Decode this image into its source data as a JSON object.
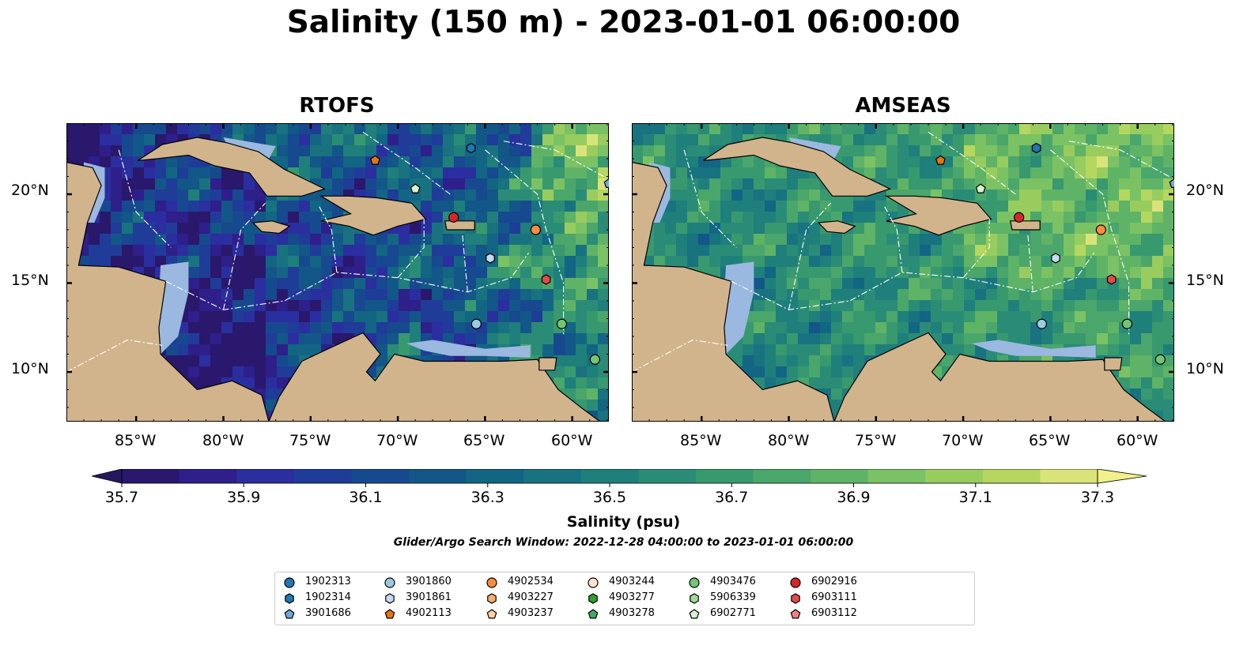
{
  "figure": {
    "title": "Salinity (150 m) - 2023-01-01 06:00:00",
    "panels": [
      {
        "title": "RTOFS"
      },
      {
        "title": "AMSEAS"
      }
    ],
    "lon_ticks": [
      "85°W",
      "80°W",
      "75°W",
      "70°W",
      "65°W",
      "60°W"
    ],
    "lat_ticks": [
      "20°N",
      "15°N",
      "10°N"
    ],
    "colors": {
      "land": "#d2b48c",
      "shallow_water": "#9bb8e0",
      "coastline": "#000000",
      "eez_lines": "#ffffff"
    }
  },
  "colorbar": {
    "label": "Salinity (psu)",
    "ticks": [
      "35.7",
      "35.9",
      "36.1",
      "36.3",
      "36.5",
      "36.7",
      "36.9",
      "37.1",
      "37.3"
    ],
    "colors": [
      "#2a186c",
      "#2e1f8a",
      "#2b2e9f",
      "#1f3c98",
      "#17498f",
      "#125787",
      "#136584",
      "#19727f",
      "#1f7f7b",
      "#2a8c76",
      "#38996f",
      "#4aa66a",
      "#5fb366",
      "#7ac264",
      "#98cc5e",
      "#b5d65f",
      "#d8e47a"
    ],
    "extend_min_color": "#26185e",
    "extend_max_color": "#f2f08a",
    "vmin": 35.7,
    "vmax": 37.3
  },
  "search_window": "Glider/Argo Search Window: 2022-12-28 04:00:00 to 2023-01-01 06:00:00",
  "legend": {
    "items": [
      {
        "id": "1902313",
        "marker": "circle",
        "color": "#1f77b4"
      },
      {
        "id": "1902314",
        "marker": "hexagon",
        "color": "#1f77b4"
      },
      {
        "id": "3901686",
        "marker": "pentagon",
        "color": "#6fa8dc"
      },
      {
        "id": "3901860",
        "marker": "circle",
        "color": "#9ecae1"
      },
      {
        "id": "3901861",
        "marker": "hexagon",
        "color": "#c6dbef"
      },
      {
        "id": "4902113",
        "marker": "pentagon",
        "color": "#e6750f"
      },
      {
        "id": "4902534",
        "marker": "circle",
        "color": "#fd8d3c"
      },
      {
        "id": "4903227",
        "marker": "hexagon",
        "color": "#fdae6b"
      },
      {
        "id": "4903237",
        "marker": "pentagon",
        "color": "#fdd0a2"
      },
      {
        "id": "4903244",
        "marker": "circle",
        "color": "#fde3cc"
      },
      {
        "id": "4903277",
        "marker": "hexagon",
        "color": "#2ca02c"
      },
      {
        "id": "4903278",
        "marker": "pentagon",
        "color": "#41ab5d"
      },
      {
        "id": "4903476",
        "marker": "circle",
        "color": "#74c476"
      },
      {
        "id": "5906339",
        "marker": "hexagon",
        "color": "#a1d99b"
      },
      {
        "id": "6902771",
        "marker": "pentagon",
        "color": "#d9f2d0"
      },
      {
        "id": "6902916",
        "marker": "circle",
        "color": "#d62728"
      },
      {
        "id": "6903111",
        "marker": "hexagon",
        "color": "#e34a4a"
      },
      {
        "id": "6903112",
        "marker": "pentagon",
        "color": "#f08080"
      }
    ]
  },
  "floats_on_map": [
    {
      "id": "4902113",
      "lon": -71.3,
      "lat": 21.9
    },
    {
      "id": "1902314",
      "lon": -65.8,
      "lat": 22.6
    },
    {
      "id": "6902771",
      "lon": -69.0,
      "lat": 20.3
    },
    {
      "id": "6902916",
      "lon": -66.8,
      "lat": 18.7
    },
    {
      "id": "4902534",
      "lon": -62.1,
      "lat": 18.0
    },
    {
      "id": "3901861",
      "lon": -64.7,
      "lat": 16.4
    },
    {
      "id": "6903111",
      "lon": -61.5,
      "lat": 15.2
    },
    {
      "id": "3901860",
      "lon": -65.5,
      "lat": 12.7
    },
    {
      "id": "4903476",
      "lon": -60.6,
      "lat": 12.7
    },
    {
      "id": "4903476",
      "lon": -58.7,
      "lat": 10.7
    },
    {
      "id": "3901686",
      "lon": -57.9,
      "lat": 20.6
    }
  ]
}
